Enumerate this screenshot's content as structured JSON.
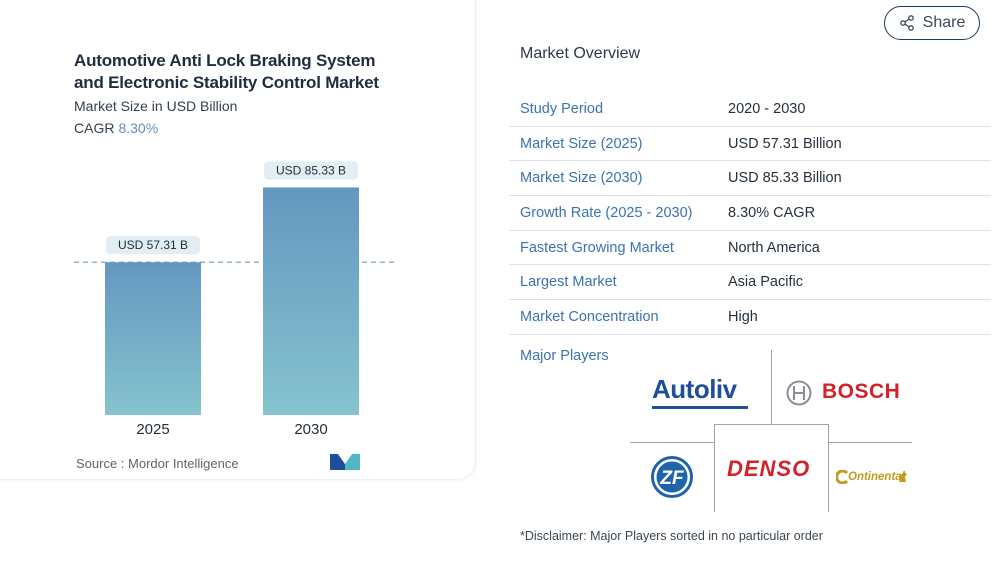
{
  "chart_data": {
    "type": "bar",
    "title_lines": [
      "Automotive Anti Lock Braking System",
      "and Electronic Stability Control Market"
    ],
    "subtitle": "Market Size in USD Billion",
    "cagr_label": "CAGR",
    "cagr_value": "8.30%",
    "categories": [
      "2025",
      "2030"
    ],
    "values": [
      57.31,
      85.33
    ],
    "data_labels": [
      "USD 57.31 B",
      "USD 85.33 B"
    ],
    "ylim": [
      0,
      105
    ],
    "reference_line": 57.31,
    "source": "Source :  Mordor Intelligence",
    "colors": {
      "bar_top": "#6497bf",
      "bar_bottom": "#86c3cf",
      "label_bg": "#e3eef2",
      "dash": "#6c9cc4"
    }
  },
  "share": {
    "label": "Share",
    "icon": "share-icon"
  },
  "overview": {
    "title": "Market Overview",
    "rows": [
      {
        "label": "Study Period",
        "value": "2020 - 2030"
      },
      {
        "label": "Market Size (2025)",
        "value": "USD 57.31 Billion"
      },
      {
        "label": "Market Size (2030)",
        "value": "USD 85.33 Billion"
      },
      {
        "label": "Growth Rate (2025 - 2030)",
        "value": "8.30% CAGR"
      },
      {
        "label": "Fastest Growing Market",
        "value": "North America"
      },
      {
        "label": "Largest Market",
        "value": "Asia Pacific"
      },
      {
        "label": "Market Concentration",
        "value": "High"
      }
    ],
    "major_players_label": "Major Players",
    "players": [
      "Autoliv",
      "BOSCH",
      "ZF",
      "DENSO",
      "Ontinental"
    ],
    "disclaimer": "*Disclaimer: Major Players sorted in no particular order"
  }
}
